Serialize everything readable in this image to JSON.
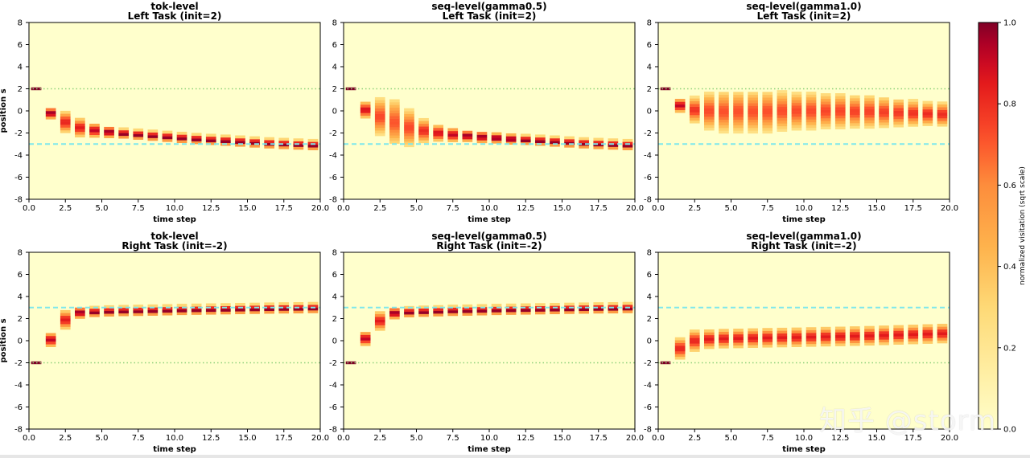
{
  "watermark": "知乎 @storm",
  "colorbar": {
    "label": "normalized visitation (sqrt scale)",
    "ticks": [
      "0.0",
      "0.2",
      "0.4",
      "0.6",
      "0.8",
      "1.0"
    ],
    "tick_values": [
      0.0,
      0.2,
      0.4,
      0.6,
      0.8,
      1.0
    ]
  },
  "colors": {
    "low": "#ffffcc",
    "mid": "#fd8d3c",
    "high": "#800026",
    "target_line": "#7ee8ec",
    "init_line": "#8fd17a"
  },
  "chart_data": [
    {
      "type": "heatmap",
      "title_line1": "tok-level",
      "title_line2": "Left Task (init=2)",
      "xlabel": "time step",
      "ylabel": "position s",
      "xlim": [
        0,
        20
      ],
      "ylim": [
        -8,
        8
      ],
      "xticks": [
        "0.0",
        "2.5",
        "5.0",
        "7.5",
        "10.0",
        "12.5",
        "15.0",
        "17.5",
        "20.0"
      ],
      "yticks": [
        "8",
        "6",
        "4",
        "2",
        "0",
        "-2",
        "-4",
        "-6",
        "-8"
      ],
      "target": -3,
      "init": 2,
      "steps": [
        0,
        1,
        2,
        3,
        4,
        5,
        6,
        7,
        8,
        9,
        10,
        11,
        12,
        13,
        14,
        15,
        16,
        17,
        18,
        19
      ],
      "centers": [
        2.0,
        -0.2,
        -1.0,
        -1.5,
        -1.75,
        -1.9,
        -2.05,
        -2.15,
        -2.25,
        -2.35,
        -2.45,
        -2.55,
        -2.63,
        -2.7,
        -2.78,
        -2.86,
        -2.94,
        -3.0,
        -3.05,
        -3.1
      ],
      "spreads": [
        0.0,
        0.25,
        0.45,
        0.4,
        0.3,
        0.25,
        0.2,
        0.2,
        0.2,
        0.2,
        0.2,
        0.2,
        0.2,
        0.2,
        0.2,
        0.2,
        0.2,
        0.2,
        0.2,
        0.2
      ]
    },
    {
      "type": "heatmap",
      "title_line1": "seq-level(gamma0.5)",
      "title_line2": "Left Task (init=2)",
      "xlabel": "time step",
      "ylabel": "",
      "xlim": [
        0,
        20
      ],
      "ylim": [
        -8,
        8
      ],
      "xticks": [
        "0.0",
        "2.5",
        "5.0",
        "7.5",
        "10.0",
        "12.5",
        "15.0",
        "17.5",
        "20.0"
      ],
      "yticks": [
        "8",
        "6",
        "4",
        "2",
        "0",
        "-2",
        "-4",
        "-6",
        "-8"
      ],
      "target": -3,
      "init": 2,
      "steps": [
        0,
        1,
        2,
        3,
        4,
        5,
        6,
        7,
        8,
        9,
        10,
        11,
        12,
        13,
        14,
        15,
        16,
        17,
        18,
        19
      ],
      "centers": [
        2.0,
        0.1,
        -0.5,
        -1.0,
        -1.5,
        -1.8,
        -2.0,
        -2.15,
        -2.25,
        -2.35,
        -2.45,
        -2.55,
        -2.63,
        -2.7,
        -2.78,
        -2.86,
        -2.94,
        -3.0,
        -3.05,
        -3.1
      ],
      "spreads": [
        0.0,
        0.35,
        0.8,
        1.0,
        0.8,
        0.5,
        0.35,
        0.3,
        0.25,
        0.25,
        0.22,
        0.22,
        0.2,
        0.2,
        0.2,
        0.2,
        0.2,
        0.2,
        0.2,
        0.2
      ]
    },
    {
      "type": "heatmap",
      "title_line1": "seq-level(gamma1.0)",
      "title_line2": "Left Task (init=2)",
      "xlabel": "time step",
      "ylabel": "",
      "xlim": [
        0,
        20
      ],
      "ylim": [
        -8,
        8
      ],
      "xticks": [
        "0.0",
        "2.5",
        "5.0",
        "7.5",
        "10.0",
        "12.5",
        "15.0",
        "17.5",
        "20.0"
      ],
      "yticks": [
        "8",
        "6",
        "4",
        "2",
        "0",
        "-2",
        "-4",
        "-6",
        "-8"
      ],
      "target": -3,
      "init": 2,
      "steps": [
        0,
        1,
        2,
        3,
        4,
        5,
        6,
        7,
        8,
        9,
        10,
        11,
        12,
        13,
        14,
        15,
        16,
        17,
        18,
        19
      ],
      "centers": [
        2.0,
        0.5,
        0.1,
        0.0,
        -0.05,
        -0.05,
        -0.05,
        -0.05,
        0.0,
        0.0,
        0.0,
        0.0,
        0.0,
        -0.05,
        -0.05,
        -0.1,
        -0.15,
        -0.2,
        -0.25,
        -0.3
      ],
      "spreads": [
        0.0,
        0.3,
        0.55,
        0.8,
        0.9,
        0.9,
        0.9,
        0.9,
        0.85,
        0.8,
        0.8,
        0.75,
        0.75,
        0.7,
        0.7,
        0.65,
        0.6,
        0.55,
        0.5,
        0.5
      ]
    },
    {
      "type": "heatmap",
      "title_line1": "tok-level",
      "title_line2": "Right Task (init=-2)",
      "xlabel": "time step",
      "ylabel": "position s",
      "xlim": [
        0,
        20
      ],
      "ylim": [
        -8,
        8
      ],
      "xticks": [
        "0.0",
        "2.5",
        "5.0",
        "7.5",
        "10.0",
        "12.5",
        "15.0",
        "17.5",
        "20.0"
      ],
      "yticks": [
        "8",
        "6",
        "4",
        "2",
        "0",
        "-2",
        "-4",
        "-6",
        "-8"
      ],
      "target": 3,
      "init": -2,
      "steps": [
        0,
        1,
        2,
        3,
        4,
        5,
        6,
        7,
        8,
        9,
        10,
        11,
        12,
        13,
        14,
        15,
        16,
        17,
        18,
        19
      ],
      "centers": [
        -2.0,
        0.1,
        1.9,
        2.55,
        2.6,
        2.65,
        2.68,
        2.7,
        2.72,
        2.75,
        2.78,
        2.8,
        2.82,
        2.84,
        2.86,
        2.88,
        2.9,
        2.92,
        2.93,
        2.95
      ],
      "spreads": [
        0.0,
        0.3,
        0.4,
        0.25,
        0.2,
        0.2,
        0.2,
        0.2,
        0.2,
        0.2,
        0.2,
        0.2,
        0.2,
        0.2,
        0.2,
        0.2,
        0.2,
        0.2,
        0.2,
        0.2
      ]
    },
    {
      "type": "heatmap",
      "title_line1": "seq-level(gamma0.5)",
      "title_line2": "Right Task (init=-2)",
      "xlabel": "time step",
      "ylabel": "",
      "xlim": [
        0,
        20
      ],
      "ylim": [
        -8,
        8
      ],
      "xticks": [
        "0.0",
        "2.5",
        "5.0",
        "7.5",
        "10.0",
        "12.5",
        "15.0",
        "17.5",
        "20.0"
      ],
      "yticks": [
        "8",
        "6",
        "4",
        "2",
        "0",
        "-2",
        "-4",
        "-6",
        "-8"
      ],
      "target": 3,
      "init": -2,
      "steps": [
        0,
        1,
        2,
        3,
        4,
        5,
        6,
        7,
        8,
        9,
        10,
        11,
        12,
        13,
        14,
        15,
        16,
        17,
        18,
        19
      ],
      "centers": [
        -2.0,
        0.2,
        1.8,
        2.5,
        2.58,
        2.62,
        2.66,
        2.7,
        2.72,
        2.75,
        2.78,
        2.8,
        2.82,
        2.84,
        2.86,
        2.88,
        2.9,
        2.92,
        2.93,
        2.95
      ],
      "spreads": [
        0.0,
        0.3,
        0.4,
        0.25,
        0.2,
        0.2,
        0.2,
        0.2,
        0.2,
        0.2,
        0.2,
        0.2,
        0.2,
        0.2,
        0.2,
        0.2,
        0.2,
        0.2,
        0.2,
        0.2
      ]
    },
    {
      "type": "heatmap",
      "title_line1": "seq-level(gamma1.0)",
      "title_line2": "Right Task (init=-2)",
      "xlabel": "time step",
      "ylabel": "",
      "xlim": [
        0,
        20
      ],
      "ylim": [
        -8,
        8
      ],
      "xticks": [
        "0.0",
        "2.5",
        "5.0",
        "7.5",
        "10.0",
        "12.5",
        "15.0",
        "17.5",
        "20.0"
      ],
      "yticks": [
        "8",
        "6",
        "4",
        "2",
        "0",
        "-2",
        "-4",
        "-6",
        "-8"
      ],
      "target": 3,
      "init": -2,
      "steps": [
        0,
        1,
        2,
        3,
        4,
        5,
        6,
        7,
        8,
        9,
        10,
        11,
        12,
        13,
        14,
        15,
        16,
        17,
        18,
        19
      ],
      "centers": [
        -2.0,
        -0.7,
        0.0,
        0.15,
        0.2,
        0.22,
        0.25,
        0.28,
        0.3,
        0.32,
        0.35,
        0.38,
        0.4,
        0.43,
        0.46,
        0.5,
        0.54,
        0.58,
        0.62,
        0.66
      ],
      "spreads": [
        0.0,
        0.45,
        0.45,
        0.4,
        0.4,
        0.4,
        0.4,
        0.4,
        0.4,
        0.4,
        0.4,
        0.4,
        0.4,
        0.4,
        0.4,
        0.4,
        0.4,
        0.4,
        0.4,
        0.4
      ]
    }
  ]
}
